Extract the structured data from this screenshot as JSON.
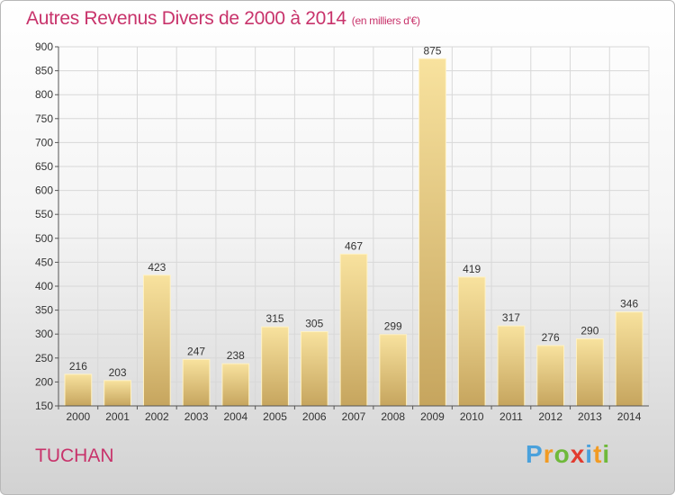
{
  "title": "Autres Revenus Divers de 2000 à 2014",
  "subtitle": "(en milliers d'€)",
  "commune": "TUCHAN",
  "logo": {
    "letters": [
      "P",
      "r",
      "o",
      "x",
      "i",
      "t",
      "i"
    ],
    "colors": [
      "#4aa1dc",
      "#f29b23",
      "#6fb93a",
      "#e23b2f",
      "#4aa1dc",
      "#f29b23",
      "#6fb93a"
    ]
  },
  "colors": {
    "title": "#c8336b",
    "bar_light": "#f8e29e",
    "bar_dark": "#c6a55e",
    "grid": "#d8d8d8"
  },
  "chart_data": {
    "type": "bar",
    "categories": [
      "2000",
      "2001",
      "2002",
      "2003",
      "2004",
      "2005",
      "2006",
      "2007",
      "2008",
      "2009",
      "2010",
      "2011",
      "2012",
      "2013",
      "2014"
    ],
    "values": [
      216,
      203,
      423,
      247,
      238,
      315,
      305,
      467,
      299,
      875,
      419,
      317,
      276,
      290,
      346
    ],
    "ylim": [
      150,
      900
    ],
    "yticks": [
      150,
      200,
      250,
      300,
      350,
      400,
      450,
      500,
      550,
      600,
      650,
      700,
      750,
      800,
      850,
      900
    ],
    "grid": true,
    "data_labels": true
  }
}
